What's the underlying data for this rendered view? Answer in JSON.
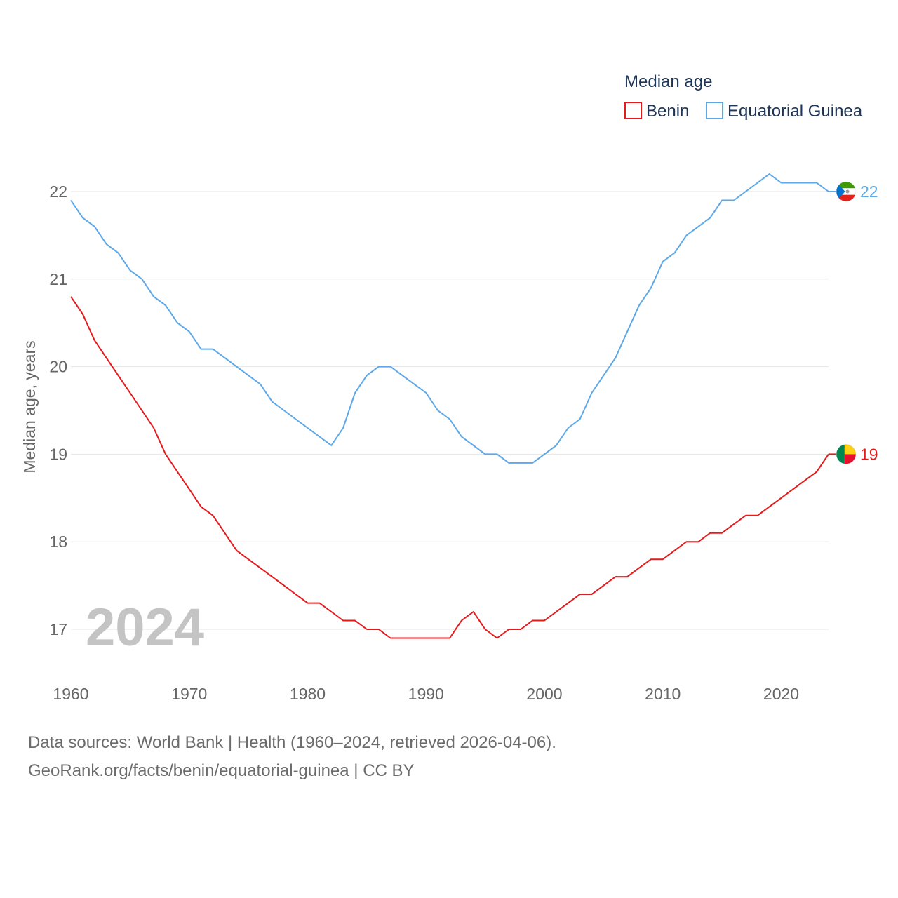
{
  "chart_data": {
    "type": "line",
    "title": "",
    "ylabel": "Median age, years",
    "xlabel": "",
    "legend_title": "Median age",
    "legend_position": "top-right",
    "highlight_year": "2024",
    "xlim": [
      1960,
      2024
    ],
    "ylim": [
      16.5,
      22.4
    ],
    "xticks": [
      1960,
      1970,
      1980,
      1990,
      2000,
      2010,
      2020
    ],
    "yticks": [
      17,
      18,
      19,
      20,
      21,
      22
    ],
    "grid": true,
    "x": [
      1960,
      1961,
      1962,
      1963,
      1964,
      1965,
      1966,
      1967,
      1968,
      1969,
      1970,
      1971,
      1972,
      1973,
      1974,
      1975,
      1976,
      1977,
      1978,
      1979,
      1980,
      1981,
      1982,
      1983,
      1984,
      1985,
      1986,
      1987,
      1988,
      1989,
      1990,
      1991,
      1992,
      1993,
      1994,
      1995,
      1996,
      1997,
      1998,
      1999,
      2000,
      2001,
      2002,
      2003,
      2004,
      2005,
      2006,
      2007,
      2008,
      2009,
      2010,
      2011,
      2012,
      2013,
      2014,
      2015,
      2016,
      2017,
      2018,
      2019,
      2020,
      2021,
      2022,
      2023,
      2024
    ],
    "series": [
      {
        "name": "Benin",
        "color": "#e41a1c",
        "end_label": "19",
        "flag_colors": [
          "#008751",
          "#fcd116",
          "#e8112d"
        ],
        "values": [
          20.8,
          20.6,
          20.3,
          20.1,
          19.9,
          19.7,
          19.5,
          19.3,
          19.0,
          18.8,
          18.6,
          18.4,
          18.3,
          18.1,
          17.9,
          17.8,
          17.7,
          17.6,
          17.5,
          17.4,
          17.3,
          17.3,
          17.2,
          17.1,
          17.1,
          17.0,
          17.0,
          16.9,
          16.9,
          16.9,
          16.9,
          16.9,
          16.9,
          17.1,
          17.2,
          17.0,
          16.9,
          17.0,
          17.0,
          17.1,
          17.1,
          17.2,
          17.3,
          17.4,
          17.4,
          17.5,
          17.6,
          17.6,
          17.7,
          17.8,
          17.8,
          17.9,
          18.0,
          18.0,
          18.1,
          18.1,
          18.2,
          18.3,
          18.3,
          18.4,
          18.5,
          18.6,
          18.7,
          18.8,
          19.0
        ]
      },
      {
        "name": "Equatorial Guinea",
        "color": "#5ea8e8",
        "end_label": "22",
        "flag_colors": [
          "#3e9a00",
          "#ffffff",
          "#e32118",
          "#0073ce"
        ],
        "values": [
          21.9,
          21.7,
          21.6,
          21.4,
          21.3,
          21.1,
          21.0,
          20.8,
          20.7,
          20.5,
          20.4,
          20.2,
          20.2,
          20.1,
          20.0,
          19.9,
          19.8,
          19.6,
          19.5,
          19.4,
          19.3,
          19.2,
          19.1,
          19.3,
          19.7,
          19.9,
          20.0,
          20.0,
          19.9,
          19.8,
          19.7,
          19.5,
          19.4,
          19.2,
          19.1,
          19.0,
          19.0,
          18.9,
          18.9,
          18.9,
          19.0,
          19.1,
          19.3,
          19.4,
          19.7,
          19.9,
          20.1,
          20.4,
          20.7,
          20.9,
          21.2,
          21.3,
          21.5,
          21.6,
          21.7,
          21.9,
          21.9,
          22.0,
          22.1,
          22.2,
          22.1,
          22.1,
          22.1,
          22.1,
          22.0
        ]
      }
    ]
  },
  "footer": {
    "sources": "Data sources: World Bank | Health (1960–2024, retrieved 2026-04-06).",
    "attribution": "GeoRank.org/facts/benin/equatorial-guinea | CC BY"
  }
}
